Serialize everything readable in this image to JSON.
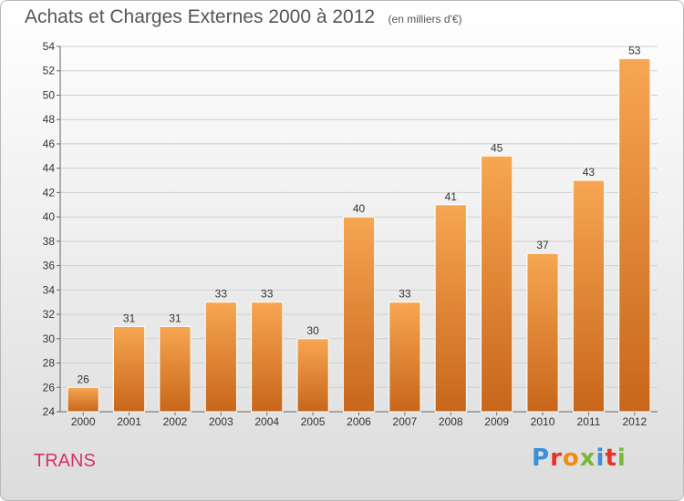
{
  "header": {
    "title": "Achats et Charges Externes 2000 à 2012",
    "unit": "(en milliers d'€)"
  },
  "footer": {
    "town": "TRANS",
    "logo_text": "Proxiti",
    "logo_colors": [
      "#3a8fd6",
      "#e8322a",
      "#f08a12",
      "#7bb83a",
      "#3a8fd6",
      "#e8322a",
      "#7bb83a"
    ]
  },
  "colors": {
    "bar_light": "#f7a652",
    "bar_dark": "#c8661a",
    "grid": "#cfcfcf"
  },
  "chart_data": {
    "type": "bar",
    "title": "Achats et Charges Externes 2000 à 2012",
    "subtitle": "(en milliers d'€)",
    "xlabel": "",
    "ylabel": "",
    "categories": [
      "2000",
      "2001",
      "2002",
      "2003",
      "2004",
      "2005",
      "2006",
      "2007",
      "2008",
      "2009",
      "2010",
      "2011",
      "2012"
    ],
    "values": [
      26,
      31,
      31,
      33,
      33,
      30,
      40,
      33,
      41,
      45,
      37,
      43,
      53
    ],
    "ylim": [
      24,
      54
    ],
    "yticks": [
      24,
      26,
      28,
      30,
      32,
      34,
      36,
      38,
      40,
      42,
      44,
      46,
      48,
      50,
      52,
      54
    ],
    "grid": true,
    "data_labels": true
  }
}
